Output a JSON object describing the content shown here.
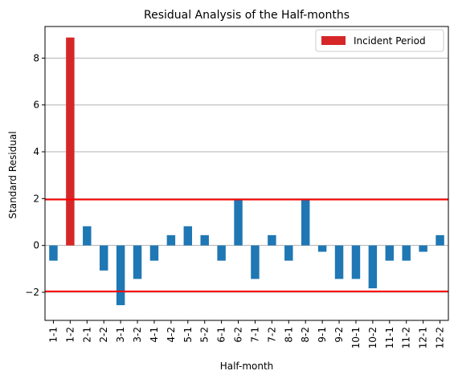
{
  "chart_data": {
    "type": "bar",
    "title": "Residual Analysis of the Half-months",
    "xlabel": "Half-month",
    "ylabel": "Standard Residual",
    "categories": [
      "1-1",
      "1-2",
      "2-1",
      "2-2",
      "3-1",
      "3-2",
      "4-1",
      "4-2",
      "5-1",
      "5-2",
      "6-1",
      "6-2",
      "7-1",
      "7-2",
      "8-1",
      "8-2",
      "9-1",
      "9-2",
      "10-1",
      "10-2",
      "11-1",
      "11-2",
      "12-1",
      "12-2"
    ],
    "values": [
      -0.65,
      8.88,
      0.82,
      -1.07,
      -2.55,
      -1.43,
      -0.65,
      0.44,
      0.82,
      0.44,
      -0.65,
      1.96,
      -1.43,
      0.44,
      -0.65,
      1.96,
      -0.27,
      -1.43,
      -1.43,
      -1.83,
      -0.65,
      -0.65,
      -0.27,
      0.44
    ],
    "highlight_index": 1,
    "ylim": [
      -3.2,
      9.35
    ],
    "yticks": [
      -2,
      0,
      2,
      4,
      6,
      8
    ],
    "reference_lines": [
      1.96,
      -1.96
    ],
    "grid": "y-axis only",
    "legend": {
      "position": "top-right",
      "entries": [
        {
          "label": "Incident Period",
          "color": "#d62728"
        }
      ]
    },
    "colors": {
      "bar": "#1f77b4",
      "highlight": "#d62728",
      "reference_line": "#ff0000",
      "grid": "#b0b0b0"
    }
  }
}
